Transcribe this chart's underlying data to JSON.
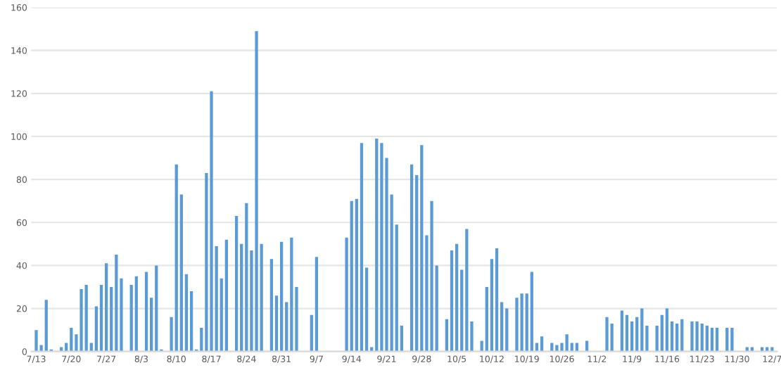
{
  "chart_data": {
    "type": "bar",
    "categories": [
      "7/13",
      null,
      null,
      null,
      null,
      null,
      null,
      "7/20",
      null,
      null,
      null,
      null,
      null,
      null,
      "7/27",
      null,
      null,
      null,
      null,
      null,
      null,
      "8/3",
      null,
      null,
      null,
      null,
      null,
      null,
      "8/10",
      null,
      null,
      null,
      null,
      null,
      null,
      "8/17",
      null,
      null,
      null,
      null,
      null,
      null,
      "8/24",
      null,
      null,
      null,
      null,
      null,
      null,
      "8/31",
      null,
      null,
      null,
      null,
      null,
      null,
      "9/7",
      null,
      null,
      null,
      null,
      null,
      null,
      "9/14",
      null,
      null,
      null,
      null,
      null,
      null,
      "9/21",
      null,
      null,
      null,
      null,
      null,
      null,
      "9/28",
      null,
      null,
      null,
      null,
      null,
      null,
      "10/5",
      null,
      null,
      null,
      null,
      null,
      null,
      "10/12",
      null,
      null,
      null,
      null,
      null,
      null,
      "10/19",
      null,
      null,
      null,
      null,
      null,
      null,
      "10/26",
      null,
      null,
      null,
      null,
      null,
      null,
      "11/2",
      null,
      null,
      null,
      null,
      null,
      null,
      "11/9",
      null,
      null,
      null,
      null,
      null,
      null,
      "11/16",
      null,
      null,
      null,
      null,
      null,
      null,
      "11/23",
      null,
      null,
      null,
      null,
      null,
      null,
      "11/30",
      null,
      null,
      null,
      null,
      null,
      null,
      "12/7"
    ],
    "values": [
      10,
      3,
      24,
      1,
      null,
      2,
      4,
      11,
      8,
      29,
      31,
      4,
      21,
      31,
      41,
      30,
      45,
      34,
      null,
      31,
      35,
      null,
      37,
      25,
      40,
      1,
      null,
      16,
      87,
      73,
      36,
      28,
      1,
      11,
      83,
      121,
      49,
      34,
      52,
      null,
      63,
      50,
      69,
      47,
      149,
      50,
      null,
      43,
      26,
      51,
      23,
      53,
      30,
      null,
      null,
      17,
      44,
      null,
      null,
      null,
      null,
      null,
      53,
      70,
      71,
      97,
      39,
      2,
      99,
      97,
      90,
      73,
      59,
      12,
      null,
      87,
      82,
      96,
      54,
      70,
      40,
      null,
      15,
      47,
      50,
      38,
      57,
      14,
      null,
      5,
      30,
      43,
      48,
      23,
      20,
      null,
      25,
      27,
      27,
      37,
      4,
      7,
      null,
      4,
      3,
      4,
      8,
      4,
      4,
      null,
      5,
      null,
      null,
      null,
      16,
      13,
      null,
      19,
      17,
      14,
      16,
      20,
      12,
      null,
      12,
      17,
      20,
      14,
      13,
      15,
      null,
      14,
      14,
      13,
      12,
      11,
      11,
      null,
      11,
      11,
      null,
      null,
      2,
      2,
      null,
      2,
      2,
      2
    ],
    "color": "#5b9bd5",
    "ylim": [
      0,
      160
    ],
    "yticks": [
      0,
      20,
      40,
      60,
      80,
      100,
      120,
      140,
      160
    ],
    "grid": "y",
    "legend": false
  }
}
